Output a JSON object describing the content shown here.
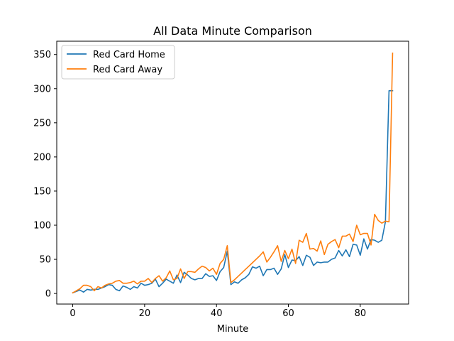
{
  "chart_data": {
    "type": "line",
    "title": "All Data Minute Comparison",
    "xlabel": "Minute",
    "ylabel": "",
    "xlim": [
      -4.45,
      93.45
    ],
    "ylim": [
      -15.5,
      369.5
    ],
    "xticks": [
      0,
      20,
      40,
      60,
      80
    ],
    "yticks": [
      0,
      50,
      100,
      150,
      200,
      250,
      300,
      350
    ],
    "legend_position": "top-left",
    "x": [
      0,
      1,
      2,
      3,
      4,
      5,
      6,
      7,
      8,
      9,
      10,
      11,
      12,
      13,
      14,
      15,
      16,
      17,
      18,
      19,
      20,
      21,
      22,
      23,
      24,
      25,
      26,
      27,
      28,
      29,
      30,
      31,
      32,
      33,
      34,
      35,
      36,
      37,
      38,
      39,
      40,
      41,
      42,
      43,
      44,
      45,
      46,
      47,
      48,
      49,
      50,
      51,
      52,
      53,
      54,
      55,
      56,
      57,
      58,
      59,
      60,
      61,
      62,
      63,
      64,
      65,
      66,
      67,
      68,
      69,
      70,
      71,
      72,
      73,
      74,
      75,
      76,
      77,
      78,
      79,
      80,
      81,
      82,
      83,
      84,
      85,
      86,
      87,
      88,
      89
    ],
    "series": [
      {
        "name": "Red Card Home",
        "color": "#1f77b4",
        "values": [
          1,
          3,
          5,
          2,
          6,
          5,
          6,
          6,
          8,
          10,
          13,
          12,
          6,
          4,
          11,
          9,
          6,
          10,
          8,
          15,
          12,
          13,
          15,
          21,
          10,
          15,
          21,
          18,
          15,
          27,
          16,
          31,
          27,
          22,
          20,
          22,
          22,
          29,
          25,
          26,
          19,
          32,
          38,
          62,
          13,
          17,
          15,
          20,
          23,
          28,
          39,
          37,
          40,
          26,
          35,
          35,
          37,
          28,
          36,
          57,
          38,
          49,
          48,
          54,
          41,
          56,
          53,
          41,
          46,
          45,
          46,
          46,
          50,
          52,
          63,
          55,
          64,
          54,
          72,
          71,
          56,
          80,
          65,
          79,
          78,
          75,
          78,
          105,
          297,
          297
        ],
        "legend_extra": null
      },
      {
        "name": "Red Card Away",
        "color": "#ff7f0e",
        "values": [
          1,
          4,
          7,
          12,
          12,
          10,
          4,
          10,
          8,
          12,
          14,
          15,
          18,
          19,
          15,
          15,
          16,
          18,
          14,
          18,
          18,
          22,
          16,
          22,
          26,
          18,
          23,
          33,
          20,
          22,
          36,
          22,
          32,
          32,
          31,
          36,
          40,
          38,
          33,
          37,
          28,
          44,
          50,
          70,
          16,
          20,
          25,
          30,
          35,
          40,
          45,
          50,
          55,
          61,
          46,
          53,
          61,
          70,
          47,
          63,
          51,
          65,
          44,
          78,
          75,
          88,
          65,
          66,
          62,
          77,
          57,
          72,
          76,
          79,
          67,
          84,
          84,
          87,
          76,
          100,
          86,
          88,
          88,
          71,
          116,
          107,
          103,
          106,
          105,
          352
        ]
      }
    ]
  }
}
